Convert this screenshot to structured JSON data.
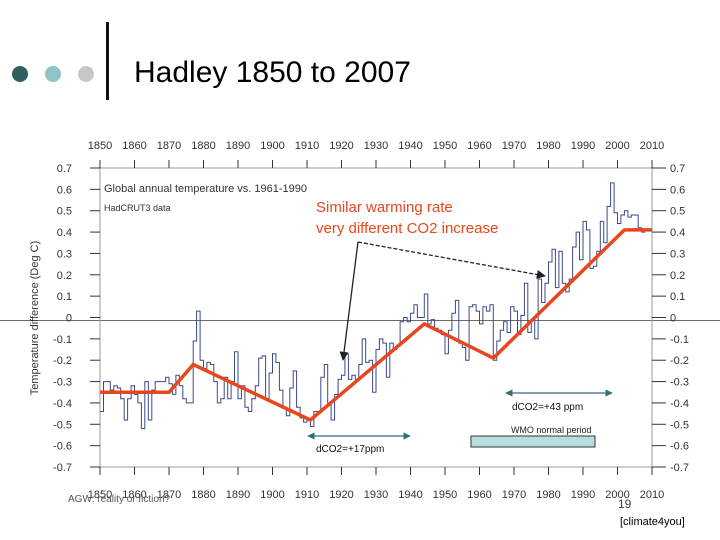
{
  "slide": {
    "title": "Hadley 1850 to 2007",
    "footer_left": "AGW: reality or fiction?",
    "page_number": "19",
    "credit": "[climate4you]",
    "dot_colors": [
      "#2f5f5f",
      "#8fc3c8",
      "#c7c7c7"
    ]
  },
  "chart_data": {
    "type": "line",
    "title": "Global annual temperature vs. 1961-1990",
    "subtitle": "HadCRUT3 data",
    "ylabel": "Temperature difference (Deg C)",
    "xlabel": "",
    "xlim": [
      1850,
      2010
    ],
    "ylim": [
      -0.7,
      0.7
    ],
    "x_ticks": [
      "1850",
      "1860",
      "1870",
      "1880",
      "1890",
      "1900",
      "1910",
      "1920",
      "1930",
      "1940",
      "1950",
      "1960",
      "1970",
      "1980",
      "1990",
      "2000",
      "2010"
    ],
    "y_ticks_left": [
      "0.7",
      "0.6",
      "0.5",
      "0.4",
      "0.3",
      "0.2",
      "0.1",
      "0",
      "-0.1",
      "-0.2",
      "-0.3",
      "-0.4",
      "-0.5",
      "-0.6",
      "-0.7"
    ],
    "y_ticks_right": [
      "0.7",
      "0.6",
      "0.5",
      "0.4",
      "0.3",
      "0.2",
      "0.1",
      "0",
      "-0.1",
      "-0.2",
      "-0.3",
      "-0.4",
      "-0.5",
      "-0.6",
      "-0.7"
    ],
    "series": [
      {
        "name": "Annual anomaly",
        "color": "#3a4a8a",
        "x": [
          1850,
          1851,
          1852,
          1853,
          1854,
          1855,
          1856,
          1857,
          1858,
          1859,
          1860,
          1861,
          1862,
          1863,
          1864,
          1865,
          1866,
          1867,
          1868,
          1869,
          1870,
          1871,
          1872,
          1873,
          1874,
          1875,
          1876,
          1877,
          1878,
          1879,
          1880,
          1881,
          1882,
          1883,
          1884,
          1885,
          1886,
          1887,
          1888,
          1889,
          1890,
          1891,
          1892,
          1893,
          1894,
          1895,
          1896,
          1897,
          1898,
          1899,
          1900,
          1901,
          1902,
          1903,
          1904,
          1905,
          1906,
          1907,
          1908,
          1909,
          1910,
          1911,
          1912,
          1913,
          1914,
          1915,
          1916,
          1917,
          1918,
          1919,
          1920,
          1921,
          1922,
          1923,
          1924,
          1925,
          1926,
          1927,
          1928,
          1929,
          1930,
          1931,
          1932,
          1933,
          1934,
          1935,
          1936,
          1937,
          1938,
          1939,
          1940,
          1941,
          1942,
          1943,
          1944,
          1945,
          1946,
          1947,
          1948,
          1949,
          1950,
          1951,
          1952,
          1953,
          1954,
          1955,
          1956,
          1957,
          1958,
          1959,
          1960,
          1961,
          1962,
          1963,
          1964,
          1965,
          1966,
          1967,
          1968,
          1969,
          1970,
          1971,
          1972,
          1973,
          1974,
          1975,
          1976,
          1977,
          1978,
          1979,
          1980,
          1981,
          1982,
          1983,
          1984,
          1985,
          1986,
          1987,
          1988,
          1989,
          1990,
          1991,
          1992,
          1993,
          1994,
          1995,
          1996,
          1997,
          1998,
          1999,
          2000,
          2001,
          2002,
          2003,
          2004,
          2005,
          2006,
          2007
        ],
        "values": [
          -0.44,
          -0.3,
          -0.3,
          -0.34,
          -0.32,
          -0.33,
          -0.38,
          -0.48,
          -0.38,
          -0.32,
          -0.36,
          -0.4,
          -0.52,
          -0.3,
          -0.48,
          -0.34,
          -0.3,
          -0.3,
          -0.3,
          -0.28,
          -0.31,
          -0.36,
          -0.27,
          -0.32,
          -0.38,
          -0.4,
          -0.4,
          -0.11,
          0.03,
          -0.2,
          -0.24,
          -0.21,
          -0.22,
          -0.3,
          -0.4,
          -0.38,
          -0.28,
          -0.38,
          -0.3,
          -0.16,
          -0.38,
          -0.32,
          -0.42,
          -0.44,
          -0.38,
          -0.32,
          -0.19,
          -0.18,
          -0.38,
          -0.26,
          -0.17,
          -0.21,
          -0.34,
          -0.42,
          -0.46,
          -0.33,
          -0.25,
          -0.42,
          -0.47,
          -0.49,
          -0.48,
          -0.51,
          -0.44,
          -0.44,
          -0.28,
          -0.22,
          -0.41,
          -0.48,
          -0.36,
          -0.29,
          -0.27,
          -0.17,
          -0.29,
          -0.27,
          -0.29,
          -0.22,
          -0.1,
          -0.21,
          -0.2,
          -0.35,
          -0.15,
          -0.1,
          -0.12,
          -0.28,
          -0.12,
          -0.15,
          -0.13,
          -0.02,
          -0.0,
          -0.02,
          0.02,
          0.06,
          0.0,
          0.0,
          0.11,
          -0.03,
          -0.01,
          -0.05,
          -0.06,
          -0.08,
          -0.17,
          -0.06,
          0.02,
          0.08,
          -0.12,
          -0.14,
          -0.2,
          0.05,
          0.06,
          0.03,
          -0.03,
          0.05,
          0.03,
          0.06,
          -0.2,
          -0.11,
          -0.06,
          -0.02,
          -0.07,
          0.05,
          0.03,
          -0.08,
          0.01,
          0.16,
          -0.07,
          -0.01,
          -0.1,
          0.18,
          0.07,
          0.16,
          0.26,
          0.32,
          0.14,
          0.31,
          0.16,
          0.12,
          0.18,
          0.33,
          0.4,
          0.27,
          0.45,
          0.41,
          0.23,
          0.24,
          0.31,
          0.45,
          0.35,
          0.52,
          0.63,
          0.49,
          0.44,
          0.48,
          0.5,
          0.47,
          0.48,
          0.48,
          0.42,
          0.4
        ]
      },
      {
        "name": "Warming trend",
        "color": "#e8461e",
        "x": [
          1850,
          1870,
          1877,
          1911,
          1944,
          1964,
          2002,
          2010
        ],
        "values": [
          -0.35,
          -0.35,
          -0.22,
          -0.48,
          -0.03,
          -0.19,
          0.41,
          0.41
        ]
      }
    ],
    "annotations": {
      "warming_text_1": "Similar warming rate",
      "warming_text_2": "very different CO2 increase",
      "co2_later": "dCO2=+43 ppm",
      "co2_early": "dCO2=+17ppm",
      "wmo_label": "WMO normal period",
      "wmo_range": [
        1961,
        1990
      ]
    }
  }
}
